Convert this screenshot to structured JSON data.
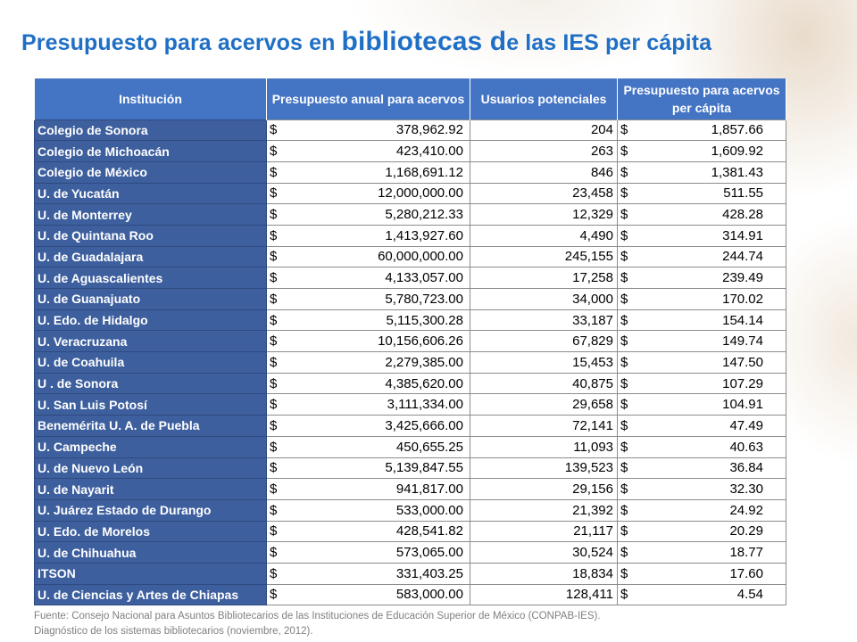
{
  "title": {
    "part1": "Presupuesto para acervos en ",
    "part2": "bibliotecas d",
    "part3": "e las IES per cápita"
  },
  "table": {
    "headers": [
      "Institución",
      "Presupuesto anual para acervos",
      "Usuarios potenciales",
      "Presupuesto para acervos per cápita"
    ],
    "currency": "$",
    "rows": [
      {
        "institution": "Colegio de Sonora",
        "budget": "378,962.92",
        "users": "204",
        "per_capita": "1,857.66"
      },
      {
        "institution": "Colegio de Michoacán",
        "budget": "423,410.00",
        "users": "263",
        "per_capita": "1,609.92"
      },
      {
        "institution": "Colegio de México",
        "budget": "1,168,691.12",
        "users": "846",
        "per_capita": "1,381.43"
      },
      {
        "institution": "U. de Yucatán",
        "budget": "12,000,000.00",
        "users": "23,458",
        "per_capita": "511.55"
      },
      {
        "institution": "U. de Monterrey",
        "budget": "5,280,212.33",
        "users": "12,329",
        "per_capita": "428.28"
      },
      {
        "institution": "U. de Quintana Roo",
        "budget": "1,413,927.60",
        "users": "4,490",
        "per_capita": "314.91"
      },
      {
        "institution": "U. de Guadalajara",
        "budget": "60,000,000.00",
        "users": "245,155",
        "per_capita": "244.74"
      },
      {
        "institution": "U. de Aguascalientes",
        "budget": "4,133,057.00",
        "users": "17,258",
        "per_capita": "239.49"
      },
      {
        "institution": "U. de Guanajuato",
        "budget": "5,780,723.00",
        "users": "34,000",
        "per_capita": "170.02"
      },
      {
        "institution": "U. Edo. de Hidalgo",
        "budget": "5,115,300.28",
        "users": "33,187",
        "per_capita": "154.14"
      },
      {
        "institution": "U. Veracruzana",
        "budget": "10,156,606.26",
        "users": "67,829",
        "per_capita": "149.74"
      },
      {
        "institution": "U. de Coahuila",
        "budget": "2,279,385.00",
        "users": "15,453",
        "per_capita": "147.50"
      },
      {
        "institution": "U . de Sonora",
        "budget": "4,385,620.00",
        "users": "40,875",
        "per_capita": "107.29"
      },
      {
        "institution": "U. San Luis Potosí",
        "budget": "3,111,334.00",
        "users": "29,658",
        "per_capita": "104.91"
      },
      {
        "institution": "Benemérita U. A. de Puebla",
        "budget": "3,425,666.00",
        "users": "72,141",
        "per_capita": "47.49"
      },
      {
        "institution": "U. Campeche",
        "budget": "450,655.25",
        "users": "11,093",
        "per_capita": "40.63"
      },
      {
        "institution": "U. de Nuevo León",
        "budget": "5,139,847.55",
        "users": "139,523",
        "per_capita": "36.84"
      },
      {
        "institution": "U. de Nayarit",
        "budget": "941,817.00",
        "users": "29,156",
        "per_capita": "32.30"
      },
      {
        "institution": "U. Juárez Estado de Durango",
        "budget": "533,000.00",
        "users": "21,392",
        "per_capita": "24.92"
      },
      {
        "institution": "U. Edo. de Morelos",
        "budget": "428,541.82",
        "users": "21,117",
        "per_capita": "20.29"
      },
      {
        "institution": "U. de Chihuahua",
        "budget": "573,065.00",
        "users": "30,524",
        "per_capita": "18.77"
      },
      {
        "institution": "ITSON",
        "budget": "331,403.25",
        "users": "18,834",
        "per_capita": "17.60"
      },
      {
        "institution": "U. de Ciencias y Artes de Chiapas",
        "budget": "583,000.00",
        "users": "128,411",
        "per_capita": "4.54"
      }
    ]
  },
  "source": {
    "line1": "Fuente: Consejo Nacional para Asuntos Bibliotecarios de las Instituciones de Educación Superior de México (CONPAB-IES).",
    "line2": "Diagnóstico de los sistemas bibliotecarios (noviembre, 2012)."
  },
  "colors": {
    "title": "#1f6fc5",
    "header_bg": "#4474c4",
    "institution_bg": "#3d5f9e"
  }
}
